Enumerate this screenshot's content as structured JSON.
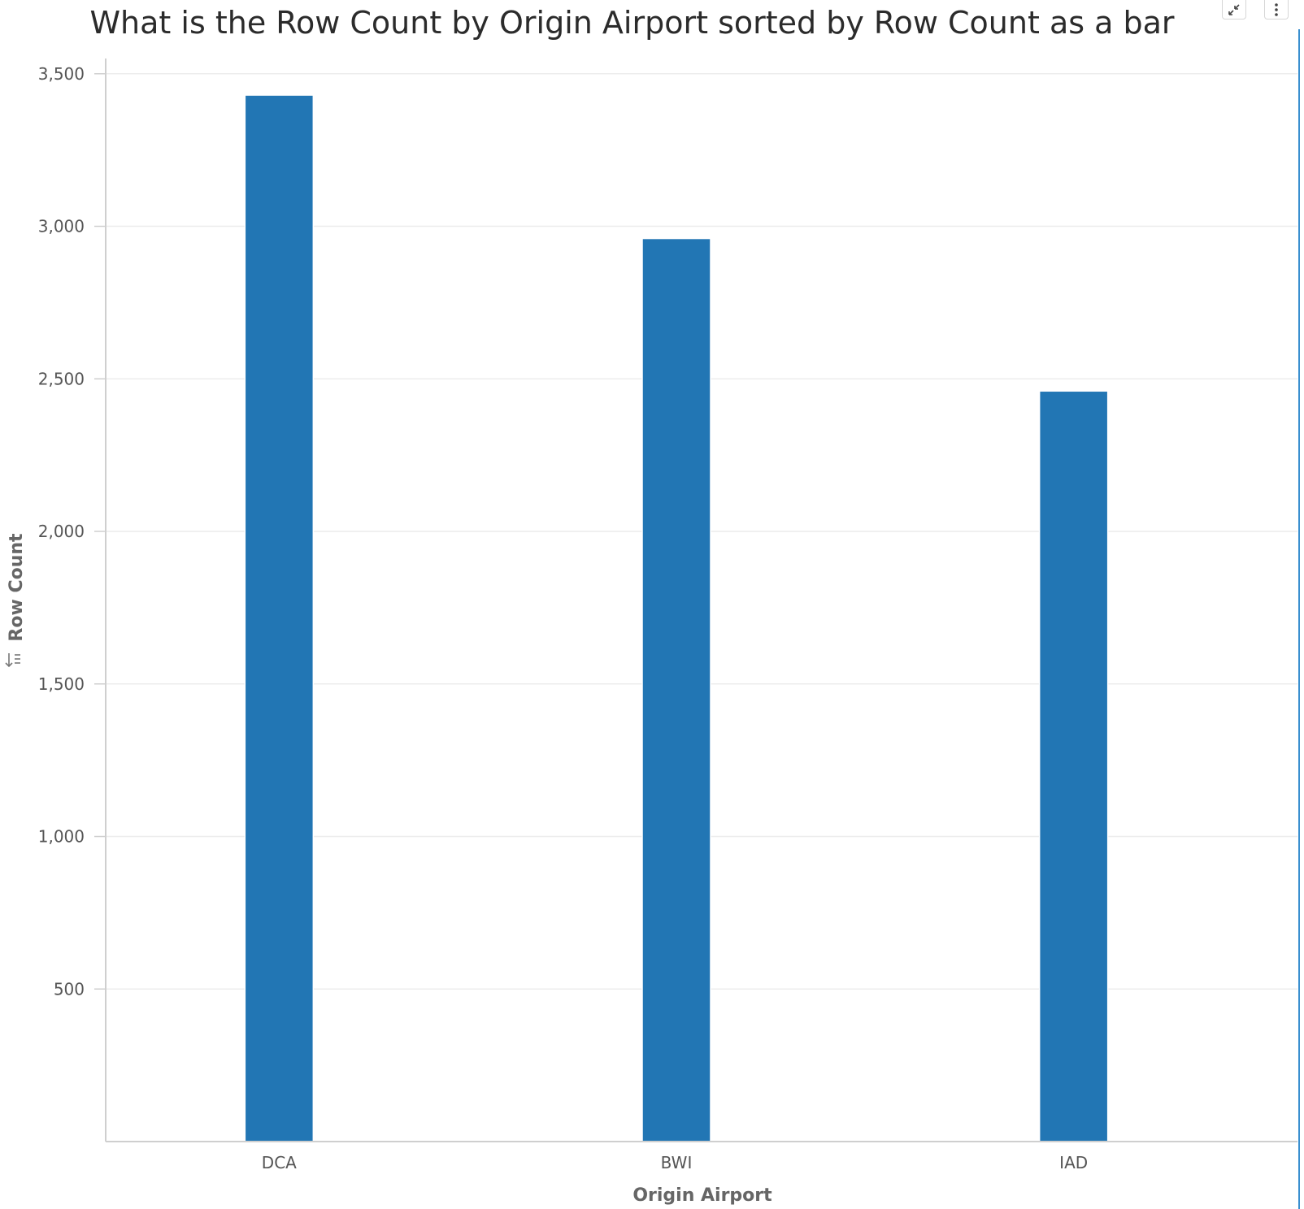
{
  "chart_data": {
    "type": "bar",
    "title": "What is the Row Count by Origin Airport sorted by Row Count as a bar",
    "xlabel": "Origin Airport",
    "ylabel": "Row Count",
    "categories": [
      "DCA",
      "BWI",
      "IAD"
    ],
    "series": [
      {
        "values": [
          3430,
          2960,
          2460
        ],
        "color": "#2276b4"
      }
    ],
    "ylim": [
      0,
      3550
    ],
    "yticks": [
      500,
      1000,
      1500,
      2000,
      2500,
      3000,
      3500
    ],
    "ytick_labels": [
      "500",
      "1,000",
      "1,500",
      "2,000",
      "2,500",
      "3,000",
      "3,500"
    ],
    "grid": true,
    "legend": "none"
  },
  "controls": {
    "expand_icon": "expand-arrows-icon",
    "menu_icon": "vertical-dots-icon",
    "sort_icon": "sort-icon"
  }
}
